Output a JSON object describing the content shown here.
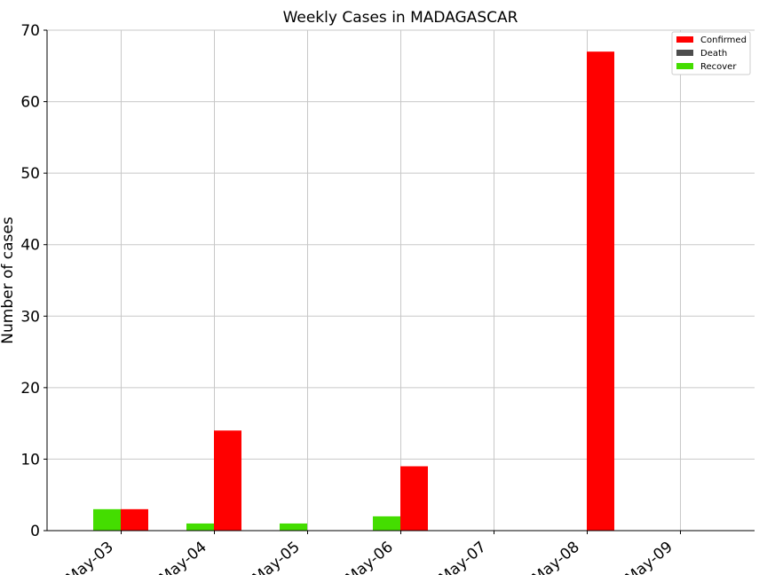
{
  "chart_data": {
    "type": "bar",
    "title": "Weekly Cases in MADAGASCAR",
    "ylabel": "Number of cases",
    "xlabel": "",
    "categories": [
      "May-03",
      "May-04",
      "May-05",
      "May-06",
      "May-07",
      "May-08",
      "May-09"
    ],
    "series": [
      {
        "name": "Confirmed",
        "color": "#ff0000",
        "values": [
          3,
          14,
          0,
          9,
          0,
          67,
          0
        ]
      },
      {
        "name": "Death",
        "color": "#4d4d4d",
        "values": [
          0,
          0,
          0,
          0,
          0,
          0,
          0
        ]
      },
      {
        "name": "Recover",
        "color": "#44dd00",
        "values": [
          3,
          1,
          1,
          2,
          0,
          0,
          0
        ]
      }
    ],
    "ylim": [
      0,
      70
    ],
    "yticks": [
      0,
      10,
      20,
      30,
      40,
      50,
      60,
      70
    ],
    "grid": true,
    "legend_position": "top-right"
  }
}
